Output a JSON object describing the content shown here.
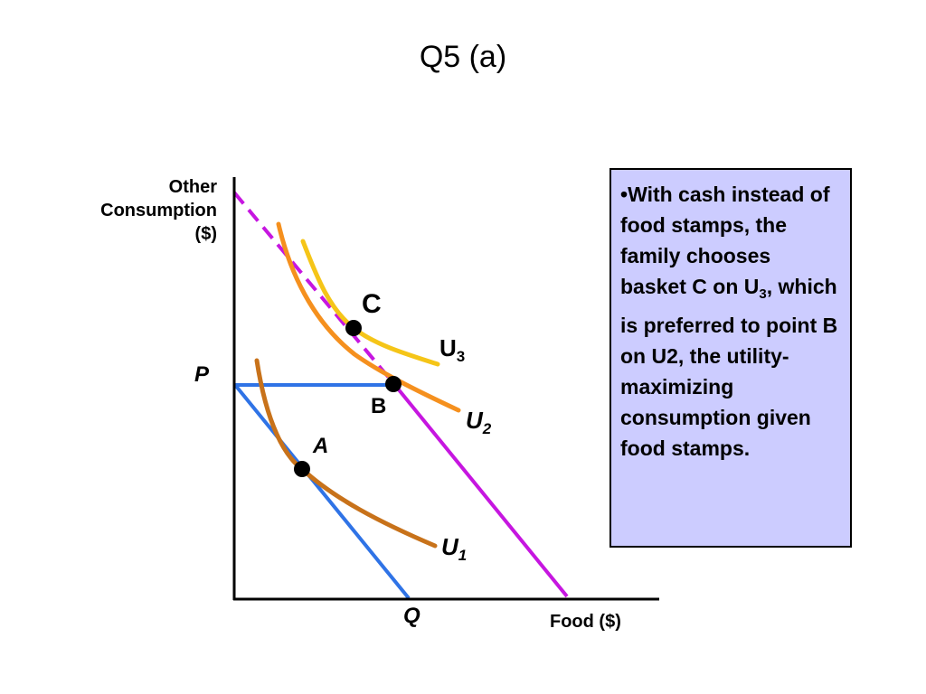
{
  "title": "Q5 (a)",
  "axes": {
    "y_label_lines": [
      "Other",
      "Consumption",
      "($)"
    ],
    "x_label": "Food ($)",
    "y_tick": "P",
    "x_tick": "Q"
  },
  "points": {
    "a": "A",
    "b": "B",
    "c": "C"
  },
  "curves": {
    "u1": {
      "base": "U",
      "sub": "1"
    },
    "u2": {
      "base": "U",
      "sub": "2"
    },
    "u3": {
      "base": "U",
      "sub": "3"
    }
  },
  "note": {
    "bullet": "•",
    "before_sub": "With cash instead of food stamps, the family chooses basket C on U",
    "sub": "3",
    "after_sub": ", which is preferred to point B on U2, the utility-maximizing consumption given food stamps."
  },
  "colors": {
    "axis": "#000000",
    "budget_original": "#2f73e6",
    "budget_cash": "#c616e0",
    "u1": "#c8721a",
    "u2": "#f5901e",
    "u3": "#f5c518",
    "note_background": "#ccccff",
    "point": "#000000"
  }
}
